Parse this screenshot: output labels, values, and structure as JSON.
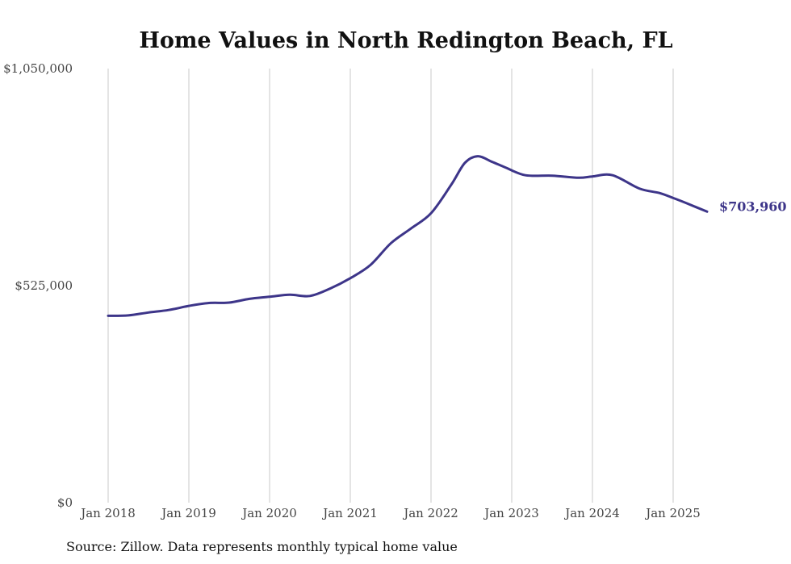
{
  "chart_data": {
    "type": "line",
    "title": "Home Values in North Redington Beach, FL",
    "xlabel": "",
    "ylabel": "",
    "ylim": [
      0,
      1050000
    ],
    "y_ticks": [
      {
        "value": 0,
        "label": "$0"
      },
      {
        "value": 525000,
        "label": "$525,000"
      },
      {
        "value": 1050000,
        "label": "$1,050,000"
      }
    ],
    "x_ticks": [
      {
        "value": 2018.0,
        "label": "Jan 2018"
      },
      {
        "value": 2019.0,
        "label": "Jan 2019"
      },
      {
        "value": 2020.0,
        "label": "Jan 2020"
      },
      {
        "value": 2021.0,
        "label": "Jan 2021"
      },
      {
        "value": 2022.0,
        "label": "Jan 2022"
      },
      {
        "value": 2023.0,
        "label": "Jan 2023"
      },
      {
        "value": 2024.0,
        "label": "Jan 2024"
      },
      {
        "value": 2025.0,
        "label": "Jan 2025"
      }
    ],
    "grid": "vertical",
    "color": "#3d3589",
    "end_label": "$703,960",
    "series": [
      {
        "x": [
          2018.0,
          2018.25,
          2018.5,
          2018.75,
          2019.0,
          2019.25,
          2019.5,
          2019.75,
          2020.0,
          2020.25,
          2020.5,
          2020.75,
          2021.0,
          2021.25,
          2021.5,
          2021.75,
          2022.0,
          2022.25,
          2022.42,
          2022.58,
          2022.75,
          2022.92,
          2023.17,
          2023.5,
          2023.83,
          2024.0,
          2024.25,
          2024.58,
          2024.83,
          2025.0,
          2025.17,
          2025.42
        ],
        "values": [
          452000,
          453000,
          460000,
          466000,
          476000,
          483000,
          484000,
          493000,
          498000,
          503000,
          500000,
          518000,
          543000,
          575000,
          627000,
          663000,
          700000,
          769000,
          822000,
          838000,
          825000,
          811000,
          792000,
          791000,
          786000,
          789000,
          792000,
          760000,
          749000,
          737000,
          724000,
          703960
        ]
      }
    ]
  },
  "source": "Source: Zillow. Data represents monthly typical home value"
}
